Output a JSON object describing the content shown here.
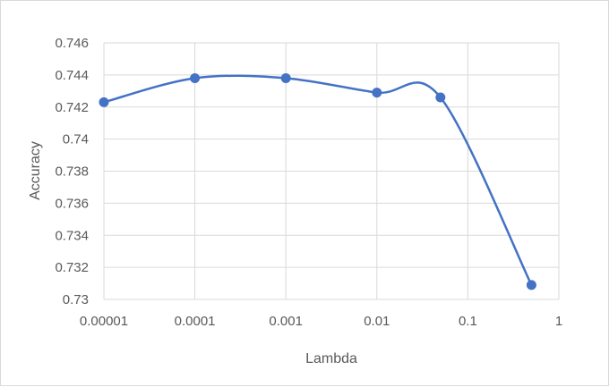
{
  "chart_data": {
    "type": "line",
    "title": "",
    "xlabel": "Lambda",
    "ylabel": "Accuracy",
    "x_scale": "log",
    "x_ticks": [
      "0.00001",
      "0.0001",
      "0.001",
      "0.01",
      "0.1",
      "1"
    ],
    "x_tick_values": [
      1e-05,
      0.0001,
      0.001,
      0.01,
      0.1,
      1
    ],
    "y_ticks": [
      "0.746",
      "0.744",
      "0.742",
      "0.74",
      "0.738",
      "0.736",
      "0.734",
      "0.732",
      "0.73"
    ],
    "xlim": [
      1e-05,
      1
    ],
    "ylim": [
      0.73,
      0.746
    ],
    "grid": true,
    "series": [
      {
        "color": "#4472c4",
        "smooth": true,
        "marker": "circle",
        "x": [
          1e-05,
          0.0001,
          0.001,
          0.01,
          0.05,
          0.5
        ],
        "y": [
          0.7423,
          0.7438,
          0.7438,
          0.7429,
          0.7426,
          0.7309
        ]
      }
    ]
  }
}
